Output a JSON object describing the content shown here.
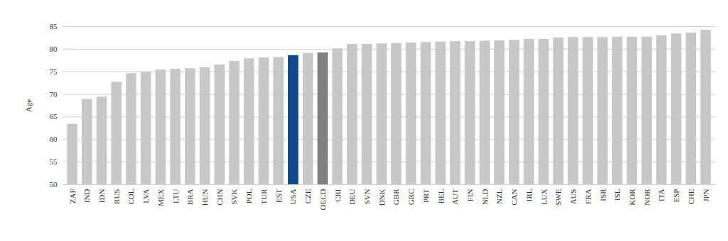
{
  "chart_data": {
    "type": "bar",
    "y_label": "Age",
    "categories": [
      "ZAF",
      "IND",
      "IDN",
      "RUS",
      "COL",
      "LVA",
      "MEX",
      "LTU",
      "BRA",
      "HUN",
      "CHN",
      "SVK",
      "POL",
      "TUR",
      "EST",
      "USA",
      "CZE",
      "OECD",
      "CRI",
      "DEU",
      "SVN",
      "DNK",
      "GBR",
      "GRC",
      "PRT",
      "BEL",
      "AUT",
      "FIN",
      "NLD",
      "NZL",
      "CAN",
      "IRL",
      "LUX",
      "SWE",
      "AUS",
      "FRA",
      "ISR",
      "ISL",
      "KOR",
      "NOR",
      "ITA",
      "ESP",
      "CHE",
      "JPN"
    ],
    "values": [
      63.4,
      68.9,
      69.4,
      72.7,
      74.6,
      74.9,
      75.4,
      75.6,
      75.7,
      75.9,
      76.5,
      77.3,
      77.9,
      78.1,
      78.2,
      78.6,
      79.1,
      79.2,
      80.1,
      81.1,
      81.1,
      81.2,
      81.3,
      81.4,
      81.5,
      81.6,
      81.7,
      81.7,
      81.8,
      81.9,
      82.0,
      82.2,
      82.2,
      82.5,
      82.6,
      82.6,
      82.6,
      82.7,
      82.7,
      82.7,
      83.0,
      83.4,
      83.6,
      84.2
    ],
    "colors": [
      "#c8c8c8",
      "#c8c8c8",
      "#c8c8c8",
      "#c8c8c8",
      "#c8c8c8",
      "#c8c8c8",
      "#c8c8c8",
      "#c8c8c8",
      "#c8c8c8",
      "#c8c8c8",
      "#c8c8c8",
      "#c8c8c8",
      "#c8c8c8",
      "#c8c8c8",
      "#c8c8c8",
      "#0d4a8e",
      "#c8c8c8",
      "#808080",
      "#c8c8c8",
      "#c8c8c8",
      "#c8c8c8",
      "#c8c8c8",
      "#c8c8c8",
      "#c8c8c8",
      "#c8c8c8",
      "#c8c8c8",
      "#c8c8c8",
      "#c8c8c8",
      "#c8c8c8",
      "#c8c8c8",
      "#c8c8c8",
      "#c8c8c8",
      "#c8c8c8",
      "#c8c8c8",
      "#c8c8c8",
      "#c8c8c8",
      "#c8c8c8",
      "#c8c8c8",
      "#c8c8c8",
      "#c8c8c8",
      "#c8c8c8",
      "#c8c8c8",
      "#c8c8c8",
      "#c8c8c8"
    ],
    "ylim": [
      50,
      85
    ],
    "yticks": [
      50,
      55,
      60,
      65,
      70,
      75,
      80,
      85
    ],
    "grid": true
  }
}
